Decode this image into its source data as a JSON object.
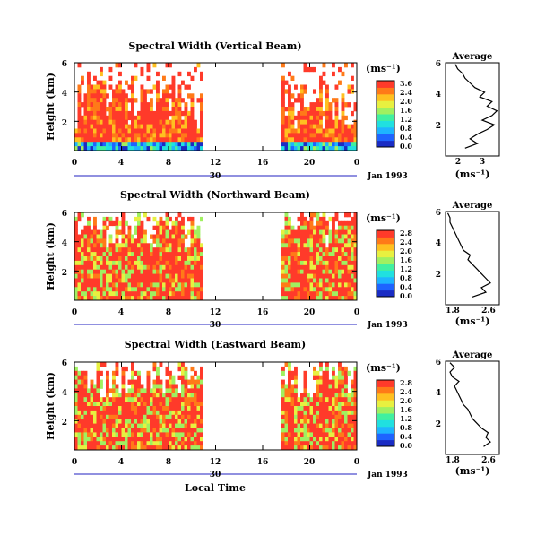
{
  "colorscale": [
    "#1a2cc4",
    "#1e64ff",
    "#1eb4ff",
    "#20e0e0",
    "#40f0a0",
    "#a0f060",
    "#e8f040",
    "#ffc020",
    "#ff7a18",
    "#ff3a2a"
  ],
  "chart_data": [
    {
      "type": "heatmap",
      "title": "Spectral Width (Vertical Beam)",
      "ylabel": "Height (km)",
      "yticks": [
        "2",
        "4",
        "6"
      ],
      "xticks": [
        "0",
        "4",
        "8",
        "12",
        "16",
        "20",
        "0"
      ],
      "day_label": "30",
      "date_label": "Jan 1993",
      "unit_label": "(ms⁻¹)",
      "colorbar_ticks": [
        "3.6",
        "2.4",
        "2.0",
        "1.6",
        "1.2",
        "0.8",
        "0.4",
        "0.0"
      ],
      "xlim_hours": [
        0,
        24
      ],
      "ylim_km": [
        0,
        6
      ],
      "data_intervals_hours": [
        [
          0,
          11
        ],
        [
          17.5,
          24
        ]
      ],
      "profile": {
        "title": "Average",
        "xlabel": "(ms⁻¹)",
        "xticks": [
          "2",
          "3"
        ],
        "xlim": [
          1.6,
          3.8
        ],
        "yticks": [
          "2",
          "4",
          "6"
        ],
        "heights_km": [
          0.5,
          0.8,
          1.1,
          1.4,
          1.7,
          2.0,
          2.3,
          2.6,
          2.9,
          3.2,
          3.5,
          3.8,
          4.1,
          4.4,
          4.7,
          5.0,
          5.3,
          5.6,
          5.9
        ],
        "values": [
          2.4,
          2.9,
          2.6,
          2.9,
          3.3,
          3.6,
          3.1,
          3.5,
          3.7,
          3.3,
          3.5,
          3.0,
          3.2,
          2.8,
          2.6,
          2.4,
          2.3,
          2.1,
          2.0
        ]
      }
    },
    {
      "type": "heatmap",
      "title": "Spectral Width (Northward Beam)",
      "ylabel": "Height (km)",
      "yticks": [
        "2",
        "4",
        "6"
      ],
      "xticks": [
        "0",
        "4",
        "8",
        "12",
        "16",
        "20",
        "0"
      ],
      "day_label": "30",
      "date_label": "Jan 1993",
      "unit_label": "(ms⁻¹)",
      "colorbar_ticks": [
        "2.8",
        "2.4",
        "2.0",
        "1.6",
        "1.2",
        "0.8",
        "0.4",
        "0.0"
      ],
      "xlim_hours": [
        0,
        24
      ],
      "ylim_km": [
        0,
        6
      ],
      "data_intervals_hours": [
        [
          0,
          11
        ],
        [
          17.5,
          24
        ]
      ],
      "profile": {
        "title": "Average",
        "xlabel": "(ms⁻¹)",
        "xticks": [
          "1.8",
          "2.6"
        ],
        "xlim": [
          1.6,
          2.8
        ],
        "yticks": [
          "2",
          "4",
          "6"
        ],
        "heights_km": [
          0.5,
          0.8,
          1.1,
          1.4,
          1.7,
          2.0,
          2.3,
          2.6,
          2.9,
          3.2,
          3.5,
          3.8,
          4.1,
          4.4,
          4.7,
          5.0,
          5.3,
          5.6,
          5.9
        ],
        "values": [
          2.2,
          2.5,
          2.4,
          2.6,
          2.5,
          2.4,
          2.3,
          2.2,
          2.1,
          2.15,
          2.0,
          1.95,
          1.9,
          1.85,
          1.8,
          1.75,
          1.7,
          1.7,
          1.65
        ]
      }
    },
    {
      "type": "heatmap",
      "title": "Spectral Width (Eastward Beam)",
      "ylabel": "Height (km)",
      "yticks": [
        "2",
        "4",
        "6"
      ],
      "xticks": [
        "0",
        "4",
        "8",
        "12",
        "16",
        "20",
        "0"
      ],
      "day_label": "30",
      "date_label": "Jan 1993",
      "unit_label": "(ms⁻¹)",
      "colorbar_ticks": [
        "2.8",
        "2.4",
        "2.0",
        "1.6",
        "1.2",
        "0.8",
        "0.4",
        "0.0"
      ],
      "xlim_hours": [
        0,
        24
      ],
      "ylim_km": [
        0,
        6
      ],
      "data_intervals_hours": [
        [
          0,
          11
        ],
        [
          17.5,
          24
        ]
      ],
      "xlabel": "Local Time",
      "profile": {
        "title": "Average",
        "xlabel": "(ms⁻¹)",
        "xticks": [
          "1.8",
          "2.6"
        ],
        "xlim": [
          1.6,
          2.8
        ],
        "yticks": [
          "2",
          "4",
          "6"
        ],
        "heights_km": [
          0.5,
          0.8,
          1.1,
          1.4,
          1.7,
          2.0,
          2.3,
          2.6,
          2.9,
          3.2,
          3.5,
          3.8,
          4.1,
          4.4,
          4.7,
          5.0,
          5.3,
          5.6,
          5.9
        ],
        "values": [
          2.45,
          2.6,
          2.5,
          2.55,
          2.4,
          2.3,
          2.2,
          2.15,
          2.1,
          2.0,
          1.95,
          1.9,
          1.85,
          1.8,
          1.9,
          1.75,
          1.7,
          1.8,
          1.7
        ]
      }
    }
  ]
}
